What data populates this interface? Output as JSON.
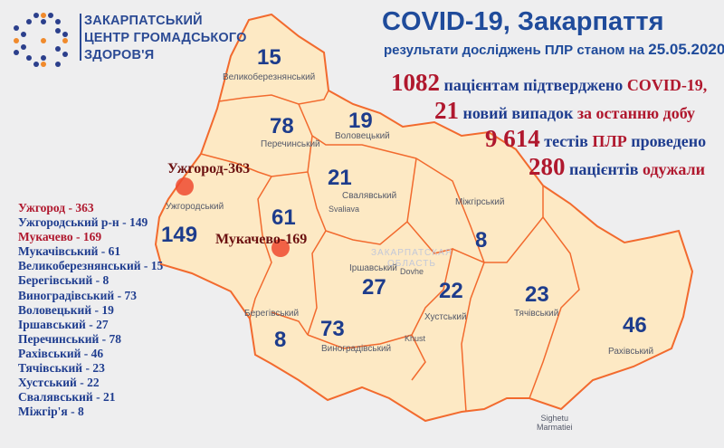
{
  "organization": {
    "line1": "ЗАКАРПАТСЬКИЙ",
    "line2": "ЦЕНТР ГРОМАДСЬКОГО",
    "line3": "ЗДОРОВ'Я",
    "logo_colors": [
      "#2b3f8c",
      "#f08a2c"
    ]
  },
  "header": {
    "title": "COVID-19, Закарпаття",
    "subtitle": "результати досліджень ПЛР станом на",
    "date": "25.05.2020"
  },
  "stats": [
    {
      "value": "1082",
      "text": "пацієнтам підтверджено",
      "highlight": "COVID-19,"
    },
    {
      "value": "21",
      "text": "новий випадок",
      "highlight": "за останню добу"
    },
    {
      "value": "9 614",
      "text": "тестів",
      "highlight": "ПЛР",
      "text2": "проведено"
    },
    {
      "value": "280",
      "text": "пацієнтів",
      "highlight": "одужали"
    }
  ],
  "legend": [
    {
      "label": "Ужгород - 363",
      "highlight": true
    },
    {
      "label": "Ужгородський р-н - 149"
    },
    {
      "label": "Мукачево - 169",
      "highlight": true
    },
    {
      "label": "Мукачівський - 61"
    },
    {
      "label": "Великоберезнянський - 15"
    },
    {
      "label": "Берегівський - 8"
    },
    {
      "label": "Виноградівський - 73"
    },
    {
      "label": "Воловецький - 19"
    },
    {
      "label": "Іршавський - 27"
    },
    {
      "label": "Перечинський - 78"
    },
    {
      "label": "Рахівський - 46"
    },
    {
      "label": "Тячівський - 23"
    },
    {
      "label": "Хустський - 22"
    },
    {
      "label": "Свалявський - 21"
    },
    {
      "label": "Міжгір'я - 8"
    }
  ],
  "districts": [
    {
      "name": "Великоберезнянський",
      "count": "15"
    },
    {
      "name": "Перечинський",
      "count": "78"
    },
    {
      "name": "Воловецький",
      "count": "19"
    },
    {
      "name": "Свалявський",
      "count": "21"
    },
    {
      "name": "Ужгородський",
      "count": "149"
    },
    {
      "name": "Мукачівський",
      "count": "61"
    },
    {
      "name": "Міжгірський",
      "count": "8"
    },
    {
      "name": "Іршавський",
      "count": "27"
    },
    {
      "name": "Хустський",
      "count": "22"
    },
    {
      "name": "Тячівський",
      "count": "23"
    },
    {
      "name": "Рахівський",
      "count": "46"
    },
    {
      "name": "Берегівський",
      "count": "8"
    },
    {
      "name": "Виноградівський",
      "count": "73"
    }
  ],
  "cities": [
    {
      "label": "Ужгород-363"
    },
    {
      "label": "Мукачево-169"
    }
  ],
  "towns": {
    "svaliava": "Svaliava",
    "dovhe": "Dovhe",
    "khust": "Khust",
    "sighetu1": "Sighetu",
    "sighetu2": "Marmatiei"
  },
  "region_label": {
    "line1": "ЗАКАРПАТСКАЯ",
    "line2": "ОБЛАСТЬ"
  },
  "colors": {
    "region_fill": "#fde9c4",
    "border": "#f26a2e",
    "title_blue": "#1f4b9b",
    "accent_red": "#b0182e",
    "marker": "#ee4a30"
  }
}
